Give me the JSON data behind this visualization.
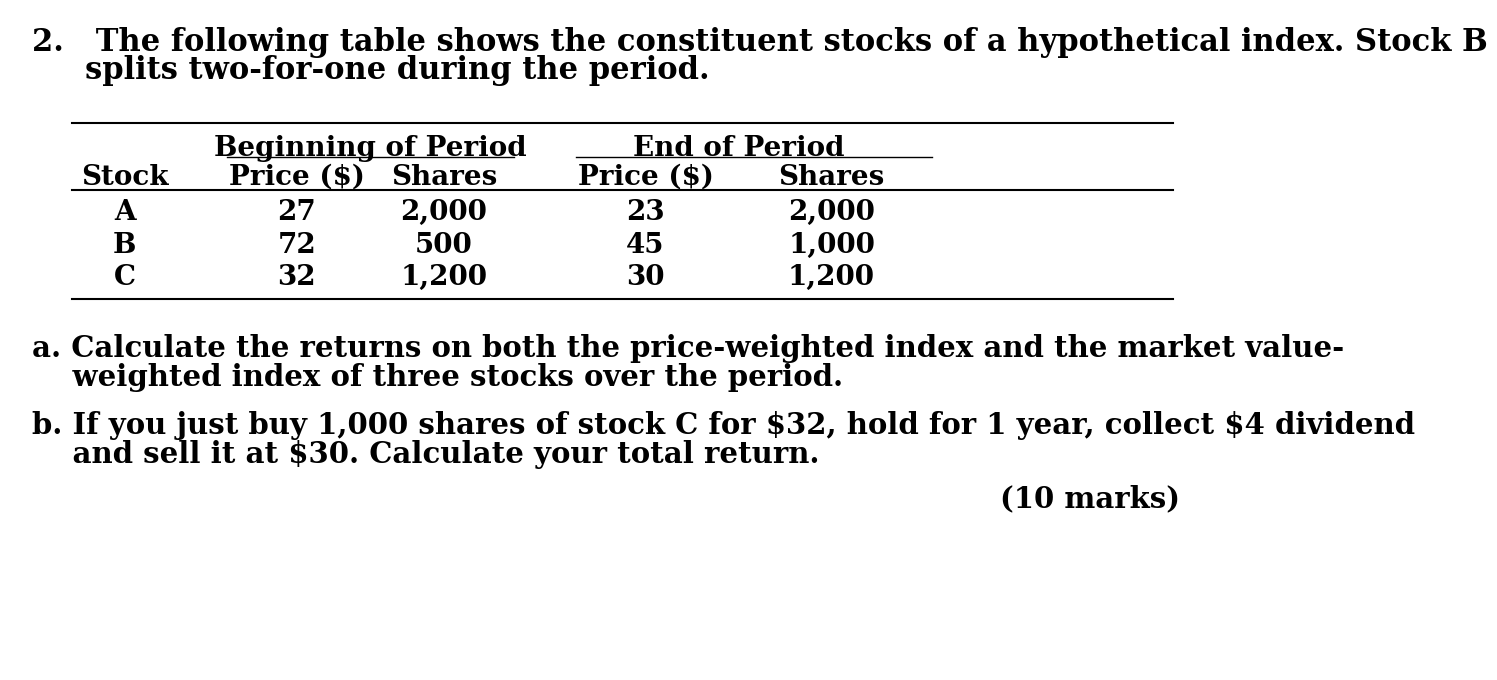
{
  "bg_color": "#ffffff",
  "title_line1": "2.   The following table shows the constituent stocks of a hypothetical index. Stock B",
  "title_line2": "     splits two-for-one during the period.",
  "bop_header": "Beginning of Period",
  "eop_header": "End of Period",
  "col_headers": [
    "Stock",
    "Price ($)",
    "Shares",
    "Price ($)",
    "Shares"
  ],
  "rows": [
    [
      "A",
      "27",
      "2,000",
      "23",
      "2,000"
    ],
    [
      "B",
      "72",
      "500",
      "45",
      "1,000"
    ],
    [
      "C",
      "32",
      "1,200",
      "30",
      "1,200"
    ]
  ],
  "qa_line1": "a. Calculate the returns on both the price-weighted index and the market value-",
  "qa_line2": "    weighted index of three stocks over the period.",
  "qb_line1": "b. If you just buy 1,000 shares of stock C for $32, hold for 1 year, collect $4 dividend",
  "qb_line2": "    and sell it at $30. Calculate your total return.",
  "marks": "(10 marks)",
  "font_size_title": 22,
  "font_size_table": 20,
  "font_size_text": 21,
  "font_size_marks": 21
}
